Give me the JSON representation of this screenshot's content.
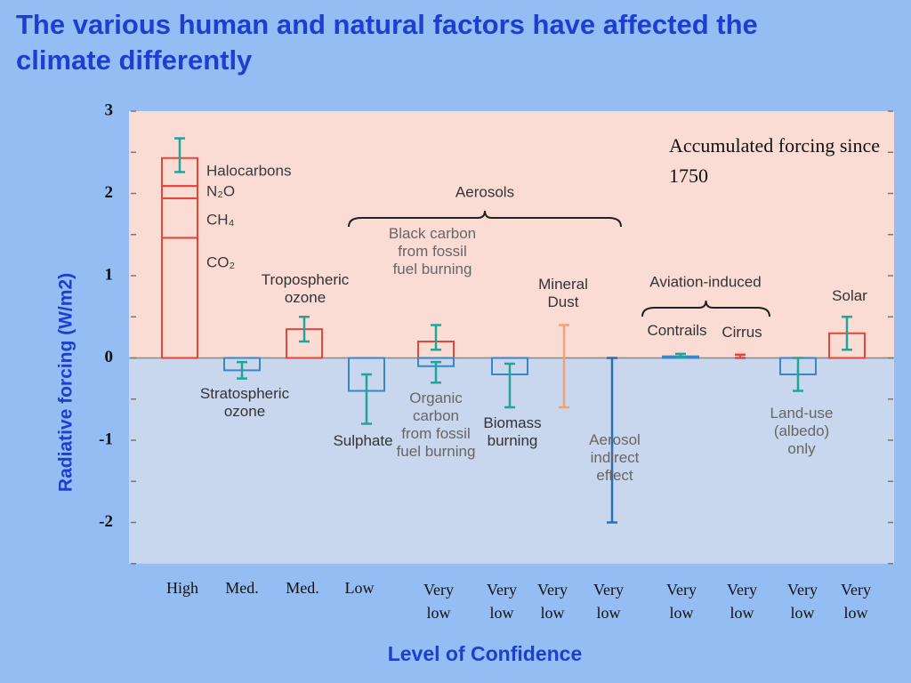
{
  "chart_data": {
    "type": "bar",
    "title": "The various human and natural factors have affected the climate differently",
    "ylabel": "Radiative forcing (W/m2)",
    "xlabel": "Level of Confidence",
    "annotation": "Accumulated forcing since 1750",
    "ylim": [
      -2.5,
      3
    ],
    "yticks": [
      -2,
      -1,
      0,
      1,
      2,
      3
    ],
    "minor_yticks": [
      -2.5,
      -1.5,
      -0.5,
      0.5,
      1.5,
      2.5
    ],
    "error_color": "#22a596",
    "groups": [
      {
        "label": "Aerosols"
      },
      {
        "label": "Aviation-induced"
      }
    ],
    "factors": [
      {
        "confidence": "High",
        "bars": [
          {
            "low": 2.26,
            "high": 2.67,
            "color": "#e0473a",
            "stack": [
              {
                "label": "CO₂",
                "value": 1.46
              },
              {
                "label": "CH₄",
                "value": 0.48
              },
              {
                "label": "N₂O",
                "value": 0.15
              },
              {
                "label": "Halocarbons",
                "value": 0.34
              }
            ]
          }
        ]
      },
      {
        "confidence": "Med.",
        "bars": [
          {
            "label": "Stratospheric ozone",
            "value": -0.15,
            "low": -0.25,
            "high": -0.05,
            "color": "#3a86c8"
          }
        ]
      },
      {
        "confidence": "Med.",
        "bars": [
          {
            "label": "Tropospheric ozone",
            "value": 0.35,
            "low": 0.2,
            "high": 0.5,
            "color": "#e0473a"
          }
        ]
      },
      {
        "confidence": "Low",
        "bars": [
          {
            "label": "Sulphate",
            "value": -0.4,
            "low": -0.8,
            "high": -0.2,
            "color": "#3a86c8"
          }
        ]
      },
      {
        "confidence": "Very low",
        "bars": [
          {
            "label": "Black carbon from fossil fuel burning",
            "value": 0.2,
            "low": 0.1,
            "high": 0.4,
            "color": "#e0473a"
          },
          {
            "label": "Organic carbon from fossil fuel burning",
            "value": -0.1,
            "low": -0.3,
            "high": -0.05,
            "color": "#3a86c8"
          }
        ]
      },
      {
        "confidence": "Very low",
        "bars": [
          {
            "label": "Biomass burning",
            "value": -0.2,
            "low": -0.6,
            "high": -0.07,
            "color": "#3a86c8"
          }
        ]
      },
      {
        "confidence": "Very low",
        "bars": [
          {
            "label": "Mineral Dust",
            "low": -0.6,
            "high": 0.4,
            "color": "#f2a276"
          }
        ]
      },
      {
        "confidence": "Very low",
        "bars": [
          {
            "label": "Aerosol indirect effect",
            "low": -2,
            "high": 0,
            "color": "#2a70b0"
          }
        ]
      },
      {
        "confidence": "Very low",
        "bars": [
          {
            "label": "Contrails",
            "value": 0.02,
            "low": 0.005,
            "high": 0.05,
            "color": "#3a86c8"
          }
        ]
      },
      {
        "confidence": "Very low",
        "bars": [
          {
            "label": "Cirrus",
            "low": 0,
            "high": 0.04,
            "color": "#e0473a"
          }
        ]
      },
      {
        "confidence": "Very low",
        "bars": [
          {
            "label": "Land-use (albedo) only",
            "value": -0.2,
            "low": -0.4,
            "high": 0,
            "color": "#3a86c8"
          }
        ]
      },
      {
        "confidence": "Very low",
        "bars": [
          {
            "label": "Solar",
            "value": 0.3,
            "low": 0.1,
            "high": 0.5,
            "color": "#e0473a"
          }
        ]
      }
    ]
  }
}
